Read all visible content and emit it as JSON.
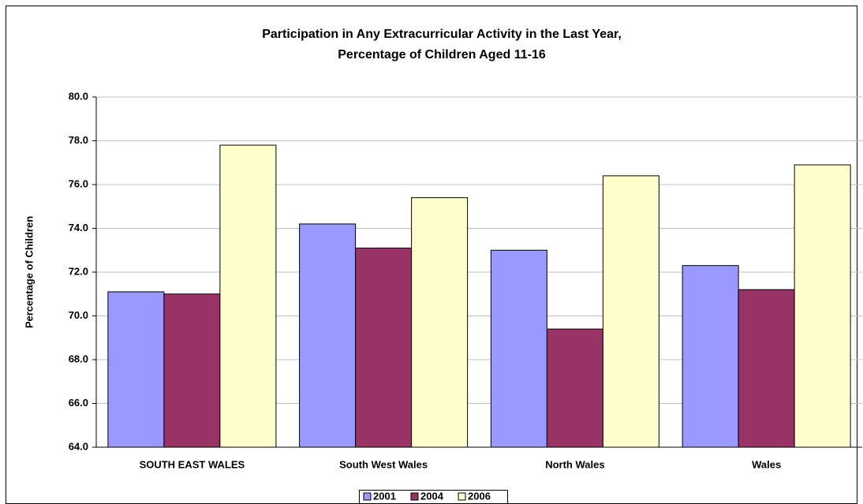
{
  "chart_data": {
    "type": "bar",
    "title": "Participation in Any Extracurricular Activity in the Last Year,",
    "subtitle": "Percentage of Children Aged 11-16",
    "y_label": "Percentage of Children",
    "categories": [
      "SOUTH EAST WALES",
      "South West Wales",
      "North Wales",
      "Wales"
    ],
    "series": [
      {
        "name": "2001",
        "color": "#9999ff",
        "values": [
          71.1,
          74.2,
          73.0,
          72.3
        ]
      },
      {
        "name": "2004",
        "color": "#993366",
        "values": [
          71.0,
          73.1,
          69.4,
          71.2
        ]
      },
      {
        "name": "2006",
        "color": "#ffffcc",
        "values": [
          77.8,
          75.4,
          76.4,
          76.9
        ]
      }
    ],
    "ylim": [
      64,
      80
    ],
    "yticks": [
      {
        "value": 64,
        "label": "64.0"
      },
      {
        "value": 66,
        "label": "66.0"
      },
      {
        "value": 68,
        "label": "68.0"
      },
      {
        "value": 70,
        "label": "70.0"
      },
      {
        "value": 72,
        "label": "72.0"
      },
      {
        "value": 74,
        "label": "74.0"
      },
      {
        "value": 76,
        "label": "76.0"
      },
      {
        "value": 78,
        "label": "78.0"
      },
      {
        "value": 80,
        "label": "80.0"
      }
    ],
    "grid": true,
    "legend": "bottom"
  }
}
